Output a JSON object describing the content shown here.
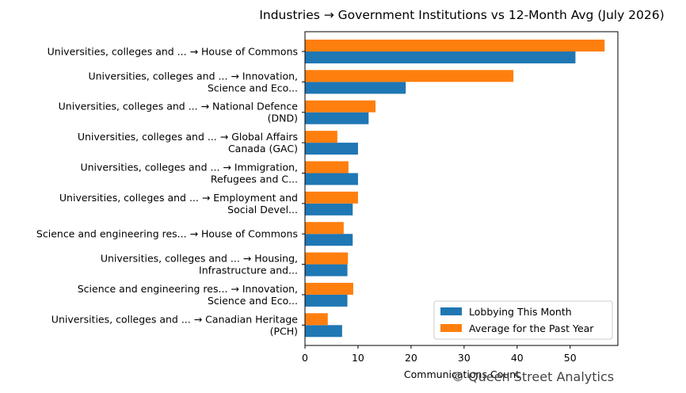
{
  "chart_data": {
    "type": "bar",
    "orientation": "horizontal",
    "title": "Industries → Government Institutions vs 12-Month Avg (July 2026)",
    "xlabel": "Communications Count",
    "ylabel": "",
    "xlim": [
      0,
      59
    ],
    "xticks": [
      0,
      10,
      20,
      30,
      40,
      50
    ],
    "grid": false,
    "legend_position": "bottom-right",
    "categories": [
      [
        "Universities, colleges and ... → House of Commons"
      ],
      [
        "Universities, colleges and ... → Innovation,",
        "Science and Eco..."
      ],
      [
        "Universities, colleges and ... → National Defence",
        "(DND)"
      ],
      [
        "Universities, colleges and ... → Global Affairs",
        "Canada (GAC)"
      ],
      [
        "Universities, colleges and ... → Immigration,",
        "Refugees and C..."
      ],
      [
        "Universities, colleges and ... → Employment and",
        "Social Devel..."
      ],
      [
        "Science and engineering res... → House of Commons"
      ],
      [
        "Universities, colleges and ... → Housing,",
        "Infrastructure and..."
      ],
      [
        "Science and engineering res... → Innovation,",
        "Science and Eco..."
      ],
      [
        "Universities, colleges and ... → Canadian Heritage",
        "(PCH)"
      ]
    ],
    "series": [
      {
        "name": "Lobbying This Month",
        "color": "#1f77b4",
        "values": [
          51,
          19,
          12,
          10,
          10,
          9,
          9,
          8,
          8,
          7
        ]
      },
      {
        "name": "Average for the Past Year",
        "color": "#ff7f0e",
        "values": [
          56.5,
          39.3,
          13.3,
          6.1,
          8.2,
          10.0,
          7.3,
          8.1,
          9.1,
          4.3
        ]
      }
    ]
  },
  "credit": "© Queen Street Analytics"
}
